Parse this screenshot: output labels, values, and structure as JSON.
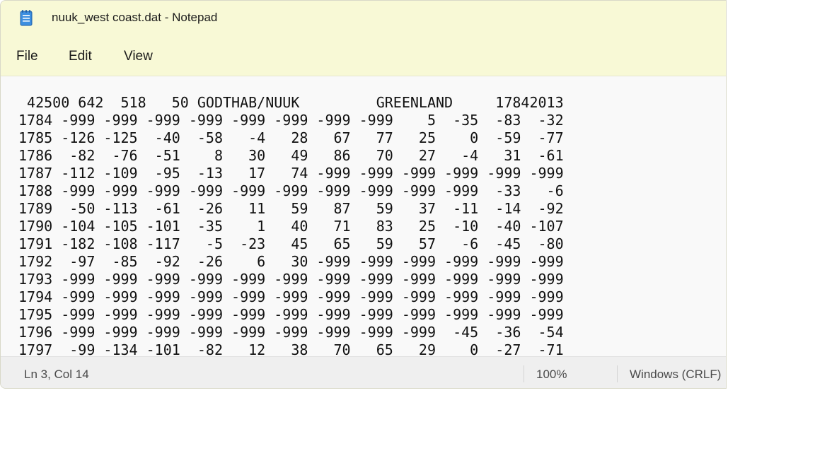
{
  "window": {
    "title": "nuuk_west coast.dat - Notepad",
    "icon": "notepad-icon"
  },
  "menu": {
    "file": "File",
    "edit": "Edit",
    "view": "View"
  },
  "document": {
    "lines": [
      " 42500 642  518   50 GODTHAB/NUUK         GREENLAND     17842013",
      "1784 -999 -999 -999 -999 -999 -999 -999 -999    5  -35  -83  -32",
      "1785 -126 -125  -40  -58   -4   28   67   77   25    0  -59  -77",
      "1786  -82  -76  -51    8   30   49   86   70   27   -4   31  -61",
      "1787 -112 -109  -95  -13   17   74 -999 -999 -999 -999 -999 -999",
      "1788 -999 -999 -999 -999 -999 -999 -999 -999 -999 -999  -33   -6",
      "1789  -50 -113  -61  -26   11   59   87   59   37  -11  -14  -92",
      "1790 -104 -105 -101  -35    1   40   71   83   25  -10  -40 -107",
      "1791 -182 -108 -117   -5  -23   45   65   59   57   -6  -45  -80",
      "1792  -97  -85  -92  -26    6   30 -999 -999 -999 -999 -999 -999",
      "1793 -999 -999 -999 -999 -999 -999 -999 -999 -999 -999 -999 -999",
      "1794 -999 -999 -999 -999 -999 -999 -999 -999 -999 -999 -999 -999",
      "1795 -999 -999 -999 -999 -999 -999 -999 -999 -999 -999 -999 -999",
      "1796 -999 -999 -999 -999 -999 -999 -999 -999 -999  -45  -36  -54",
      "1797  -99 -134 -101  -82   12   38   70   65   29    0  -27  -71"
    ]
  },
  "status": {
    "position": "Ln 3, Col 14",
    "zoom": "100%",
    "line_ending": "Windows (CRLF)"
  },
  "colors": {
    "titlebar_bg": "#f8f9d6",
    "editor_bg": "#f9f9f9",
    "statusbar_bg": "#efefef",
    "icon_blue": "#2b7bd6"
  }
}
